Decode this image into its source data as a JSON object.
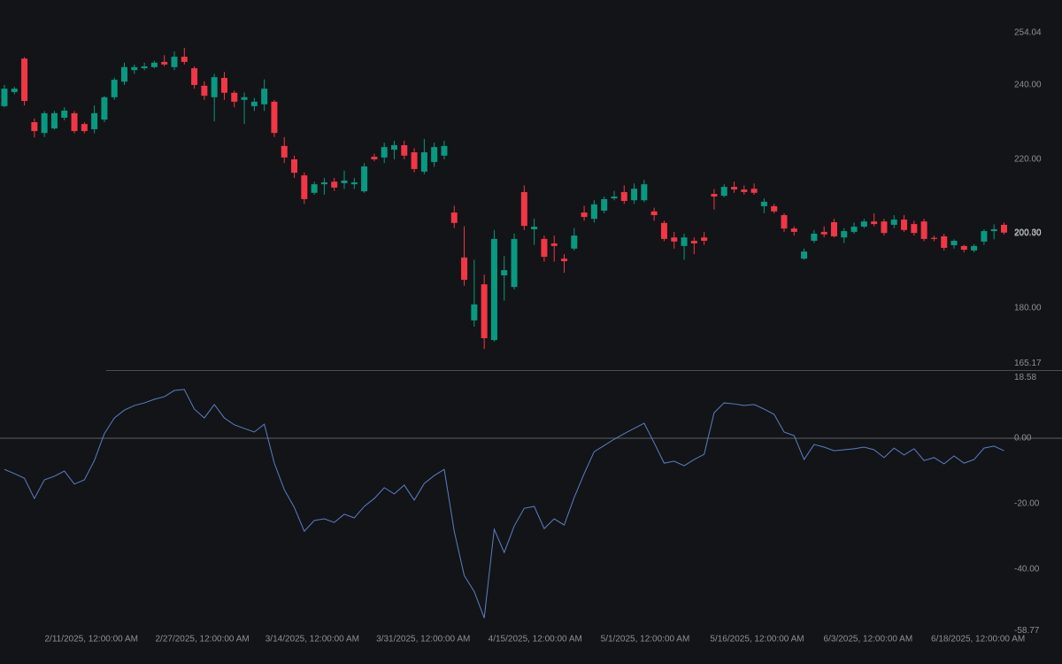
{
  "chart_data": [
    {
      "type": "candlestick",
      "open": [
        234.3,
        238.1,
        247.1,
        230,
        227.1,
        228.3,
        231.2,
        232.4,
        229.5,
        228.1,
        230.7,
        236.7,
        240.9,
        244,
        244.5,
        244.8,
        246.2,
        244.8,
        247.6,
        244.5,
        239.8,
        236.7,
        241.9,
        237.9,
        236,
        234.3,
        234.8,
        235.5,
        223.6,
        220,
        215.7,
        211,
        213.3,
        214,
        213.6,
        213.3,
        211.4,
        220.7,
        220.5,
        222.6,
        223.8,
        221.9,
        216.7,
        219.3,
        221,
        205.7,
        193.6,
        176.7,
        186.4,
        171.4,
        188.8,
        185.7,
        211.2,
        201.2,
        198.6,
        197.4,
        193.3,
        196,
        205.7,
        204,
        206.2,
        209.5,
        211.2,
        209,
        209,
        206,
        202.9,
        199,
        196.7,
        198.1,
        199,
        210.7,
        210.2,
        212.6,
        211.9,
        212.1,
        207.4,
        207.4,
        205,
        201.4,
        193.3,
        198.1,
        200.5,
        203.1,
        199,
        200.5,
        201.9,
        203.3,
        203.3,
        202.4,
        203.8,
        202.6,
        203.3,
        198.9,
        199.3,
        196.9,
        196.7,
        195.5,
        197.9,
        200.7,
        202.4
      ],
      "high": [
        240,
        239.5,
        247.5,
        231,
        233,
        233,
        234,
        233,
        230,
        234.5,
        237,
        242,
        246,
        245.5,
        246,
        246.5,
        248,
        249,
        250,
        245,
        241,
        243,
        243.5,
        238.5,
        238,
        236.5,
        241.5,
        236,
        226,
        221,
        216.5,
        214,
        215,
        215,
        217,
        215,
        219,
        221.5,
        224.5,
        225,
        225,
        223,
        225.5,
        224.5,
        225,
        207.5,
        202,
        193,
        189,
        201,
        194,
        200,
        213,
        204,
        199.5,
        199.5,
        194.5,
        201.5,
        207.5,
        209,
        210,
        211.5,
        213,
        213.5,
        214.5,
        207,
        203.5,
        200.5,
        200,
        199,
        200.5,
        212,
        213.3,
        214,
        213,
        213.5,
        209.5,
        208,
        205.5,
        202,
        196,
        201,
        202,
        204,
        201.5,
        203,
        204,
        205.5,
        204,
        205,
        205,
        203.5,
        204,
        199.5,
        200,
        198.5,
        197,
        197.2,
        201.2,
        202.5,
        203
      ],
      "low": [
        234,
        237.5,
        234.5,
        225.9,
        226,
        228,
        230.5,
        227,
        227,
        227,
        230,
        236,
        240,
        243,
        244,
        244.5,
        245,
        244,
        245.5,
        239,
        236,
        230.2,
        236,
        234,
        229.5,
        233,
        233,
        226,
        219,
        215,
        208,
        210.5,
        210.5,
        211.5,
        212,
        212,
        211,
        219.5,
        219,
        220,
        220,
        216.5,
        216,
        218,
        220,
        201.5,
        186,
        175,
        169,
        171,
        182,
        185,
        201,
        197,
        192.5,
        192.5,
        189.5,
        195.5,
        203.5,
        203,
        205.5,
        209,
        208,
        208,
        208.5,
        203.5,
        198,
        196,
        193,
        194.5,
        197,
        206.5,
        209.8,
        211,
        210.5,
        210.5,
        205.5,
        205.5,
        200.5,
        199.5,
        193,
        197.5,
        199,
        199,
        197.5,
        200,
        201.5,
        202,
        199.5,
        201.5,
        200.5,
        199.5,
        198,
        198,
        195.5,
        196,
        195,
        195,
        197,
        198.5,
        199.8
      ],
      "close": [
        239,
        239,
        235.7,
        227.6,
        232.4,
        232.4,
        233.1,
        227.6,
        227.6,
        232.4,
        236.7,
        241.4,
        244.8,
        244.8,
        245,
        246,
        245.5,
        247.6,
        246.2,
        240,
        237.1,
        242.1,
        237.9,
        235.5,
        236.7,
        235.5,
        239,
        227.1,
        220.5,
        216.4,
        209.3,
        213.3,
        213.8,
        212.4,
        214.3,
        213.8,
        218.1,
        220,
        223.3,
        223.8,
        221,
        217.4,
        221.9,
        223.3,
        223.6,
        202.9,
        187.6,
        181,
        171.9,
        198.6,
        190.2,
        198.6,
        202.1,
        201.9,
        193.8,
        196.7,
        192.6,
        199.5,
        204.5,
        207.9,
        209.3,
        210,
        208.8,
        212.1,
        213.3,
        205,
        198.6,
        197.9,
        199,
        197.4,
        198.1,
        210,
        212.6,
        211.9,
        211.2,
        211,
        208.6,
        206,
        201.4,
        200.5,
        195.2,
        200,
        199.8,
        199.3,
        200.7,
        201.9,
        203.3,
        202.6,
        200.2,
        203.8,
        201,
        200.2,
        198.6,
        198.6,
        196.2,
        198.1,
        195.7,
        196.7,
        200.7,
        201.2,
        200.3
      ],
      "last_price_label": "200.30",
      "up_color": "#089981",
      "down_color": "#f23645",
      "xlim": [
        -0.44,
        105.8
      ],
      "ylim": [
        165.17,
        254.04
      ],
      "yticks": [
        254.04,
        {
          "value": 240,
          "label": "240.00"
        },
        {
          "value": 220,
          "label": "220.00"
        },
        {
          "value": 200,
          "label": "200.00"
        },
        {
          "value": 180,
          "label": "180.00"
        },
        165.17
      ]
    },
    {
      "type": "line",
      "values": [
        -9.5,
        -10.8,
        -12.2,
        -18.4,
        -12.7,
        -11.6,
        -10,
        -14,
        -12.7,
        -6.8,
        1.4,
        6.2,
        8.6,
        10,
        10.8,
        11.9,
        12.7,
        14.6,
        14.9,
        8.9,
        6.2,
        10.3,
        6.2,
        4.1,
        3,
        1.9,
        4.3,
        -7.6,
        -15.7,
        -21.1,
        -28.4,
        -25.1,
        -24.6,
        -25.7,
        -23.2,
        -24.3,
        -20.8,
        -18.4,
        -15.1,
        -17,
        -14.3,
        -18.9,
        -13.8,
        -11.4,
        -9.5,
        -28.4,
        -41.9,
        -46.8,
        -54.9,
        -27.8,
        -34.9,
        -26.8,
        -21.4,
        -20.8,
        -27.6,
        -24.6,
        -26.5,
        -18.1,
        -10.8,
        -4.1,
        -2.2,
        -0.3,
        1.4,
        3,
        4.6,
        -1.4,
        -7.6,
        -7,
        -8.4,
        -6.5,
        -4.9,
        7.8,
        10.8,
        10.5,
        10,
        10.3,
        8.9,
        7.3,
        1.9,
        0.8,
        -6.5,
        -1.9,
        -2.7,
        -3.8,
        -3.5,
        -3.2,
        -2.7,
        -3.5,
        -5.9,
        -3,
        -5.1,
        -3.2,
        -6.8,
        -5.9,
        -7.8,
        -5.4,
        -7.6,
        -6.5,
        -3,
        -2.4,
        -3.8
      ],
      "color": "#5b7ec4",
      "xlim": [
        -0.44,
        105.8
      ],
      "xticks": [
        {
          "value": 8.7,
          "label": "2/11/2025, 12:00:00 AM"
        },
        {
          "value": 19.8,
          "label": "2/27/2025, 12:00:00 AM"
        },
        {
          "value": 30.8,
          "label": "3/14/2025, 12:00:00 AM"
        },
        {
          "value": 41.9,
          "label": "3/31/2025, 12:00:00 AM"
        },
        {
          "value": 53.1,
          "label": "4/15/2025, 12:00:00 AM"
        },
        {
          "value": 64.1,
          "label": "5/1/2025, 12:00:00 AM"
        },
        {
          "value": 75.3,
          "label": "5/16/2025, 12:00:00 AM"
        },
        {
          "value": 86.4,
          "label": "6/3/2025, 12:00:00 AM"
        },
        {
          "value": 97.4,
          "label": "6/18/2025, 12:00:00 AM"
        }
      ],
      "ylim": [
        -58.77,
        18.58
      ],
      "yticks": [
        18.58,
        {
          "value": 0,
          "label": "0.00"
        },
        {
          "value": -20,
          "label": "-20.00"
        },
        {
          "value": -40,
          "label": "-40.00"
        },
        -58.77
      ]
    }
  ]
}
